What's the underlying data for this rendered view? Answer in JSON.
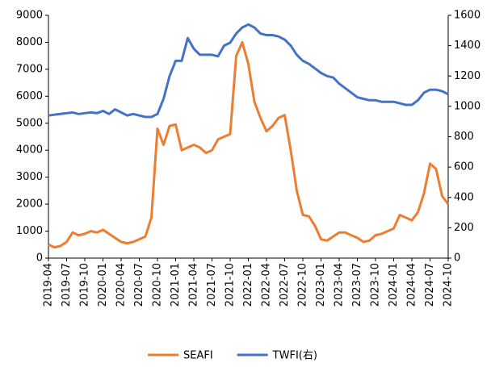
{
  "chart_data": {
    "type": "line",
    "x": [
      "2019-04",
      "2019-05",
      "2019-06",
      "2019-07",
      "2019-08",
      "2019-09",
      "2019-10",
      "2019-11",
      "2019-12",
      "2020-01",
      "2020-02",
      "2020-03",
      "2020-04",
      "2020-05",
      "2020-06",
      "2020-07",
      "2020-08",
      "2020-09",
      "2020-10",
      "2020-11",
      "2020-12",
      "2021-01",
      "2021-02",
      "2021-03",
      "2021-04",
      "2021-05",
      "2021-06",
      "2021-07",
      "2021-08",
      "2021-09",
      "2021-10",
      "2021-11",
      "2021-12",
      "2022-01",
      "2022-02",
      "2022-03",
      "2022-04",
      "2022-05",
      "2022-06",
      "2022-07",
      "2022-08",
      "2022-09",
      "2022-10",
      "2022-11",
      "2022-12",
      "2023-01",
      "2023-02",
      "2023-03",
      "2023-04",
      "2023-05",
      "2023-06",
      "2023-07",
      "2023-08",
      "2023-09",
      "2023-10",
      "2023-11",
      "2023-12",
      "2024-01",
      "2024-02",
      "2024-03",
      "2024-04",
      "2024-05",
      "2024-06",
      "2024-07",
      "2024-08",
      "2024-09",
      "2024-10"
    ],
    "xticks": [
      "2019-04",
      "2019-07",
      "2019-10",
      "2020-01",
      "2020-04",
      "2020-07",
      "2020-10",
      "2021-01",
      "2021-04",
      "2021-07",
      "2021-10",
      "2022-01",
      "2022-04",
      "2022-07",
      "2022-10",
      "2023-01",
      "2023-04",
      "2023-07",
      "2023-10",
      "2024-01",
      "2024-04",
      "2024-07",
      "2024-10"
    ],
    "series": [
      {
        "name": "SEAFI",
        "color": "#ed7d31",
        "axis": "y",
        "values": [
          500,
          400,
          450,
          600,
          950,
          850,
          900,
          1000,
          950,
          1050,
          900,
          750,
          600,
          550,
          600,
          700,
          800,
          1500,
          4800,
          4200,
          4900,
          4950,
          4000,
          4100,
          4200,
          4100,
          3900,
          4000,
          4400,
          4500,
          4600,
          7500,
          8000,
          7200,
          5800,
          5200,
          4700,
          4900,
          5200,
          5300,
          4000,
          2500,
          1600,
          1550,
          1200,
          700,
          650,
          800,
          950,
          950,
          850,
          750,
          600,
          650,
          850,
          900,
          1000,
          1100,
          1600,
          1500,
          1400,
          1700,
          2400,
          3500,
          3300,
          2300,
          2000
        ]
      },
      {
        "name": "TWFI(右)",
        "color": "#4472c4",
        "axis": "y2",
        "values": [
          940,
          945,
          950,
          955,
          960,
          950,
          955,
          960,
          955,
          970,
          950,
          980,
          960,
          940,
          950,
          940,
          930,
          930,
          950,
          1050,
          1200,
          1300,
          1300,
          1450,
          1380,
          1340,
          1340,
          1340,
          1330,
          1400,
          1420,
          1480,
          1520,
          1540,
          1520,
          1480,
          1470,
          1470,
          1460,
          1440,
          1400,
          1340,
          1300,
          1280,
          1250,
          1220,
          1200,
          1190,
          1150,
          1120,
          1090,
          1060,
          1050,
          1040,
          1040,
          1030,
          1030,
          1030,
          1020,
          1010,
          1010,
          1040,
          1090,
          1110,
          1110,
          1100,
          1080
        ]
      }
    ],
    "ylim": [
      0,
      9000
    ],
    "yticks": [
      0,
      1000,
      2000,
      3000,
      4000,
      5000,
      6000,
      7000,
      8000,
      9000
    ],
    "y2lim": [
      0,
      1600
    ],
    "y2ticks": [
      0,
      200,
      400,
      600,
      800,
      1000,
      1200,
      1400,
      1600
    ]
  }
}
